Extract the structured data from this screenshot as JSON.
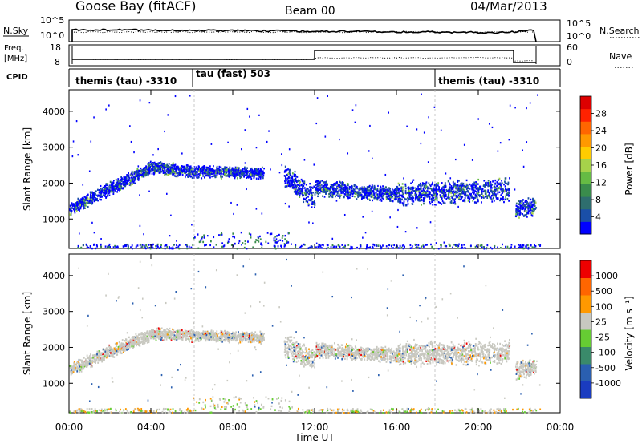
{
  "header": {
    "station": "Goose Bay (fitACF)",
    "beam": "Beam 00",
    "date": "04/Mar/2013"
  },
  "top_panels": {
    "sky": {
      "left_label": "N.Sky",
      "right_label": "N.Search",
      "left_ticks": [
        "10^5",
        "10^0"
      ],
      "right_ticks": [
        "10^5",
        "10^0"
      ]
    },
    "freq": {
      "left_label_1": "Freq.",
      "left_label_2": "[MHz]",
      "right_label": "Nave",
      "left_ticks": [
        "18",
        "8"
      ],
      "right_ticks": [
        "60",
        "0"
      ]
    },
    "cpid": {
      "label": "CPID",
      "segments": [
        {
          "text": "themis (tau) -3310",
          "start_hour": 0,
          "end_hour": 6
        },
        {
          "text": "tau (fast) 503",
          "start_hour": 6,
          "end_hour": 18
        },
        {
          "text": "themis (tau) -3310",
          "start_hour": 18,
          "end_hour": 24
        }
      ]
    }
  },
  "chart_data": [
    {
      "type": "heatmap",
      "title": "",
      "xlabel": "Time UT",
      "ylabel": "Slant Range [km]",
      "xlim": [
        0,
        24
      ],
      "ylim": [
        180,
        4600
      ],
      "x_ticks": [
        0,
        4,
        8,
        12,
        16,
        20,
        24
      ],
      "x_tick_labels": [
        "00:00",
        "04:00",
        "08:00",
        "12:00",
        "16:00",
        "20:00",
        "00:00"
      ],
      "y_ticks": [
        1000,
        2000,
        3000,
        4000
      ],
      "y_tick_labels": [
        "1000",
        "2000",
        "3000",
        "4000"
      ],
      "colorbar": {
        "label": "Power [dB]",
        "tick_labels": [
          "28",
          "24",
          "20",
          "16",
          "12",
          "8",
          "4"
        ],
        "colors": [
          "#0000ff",
          "#1a4fa8",
          "#2e6e6e",
          "#3a8c4c",
          "#66bb44",
          "#a6d24a",
          "#ffcc00",
          "#ff9900",
          "#ff6600",
          "#ff2200",
          "#dd0000"
        ]
      },
      "scatter_bands": [
        {
          "start_hour": 0.0,
          "end_hour": 4.0,
          "center_start": 1300,
          "center_end": 2450,
          "width": 260
        },
        {
          "start_hour": 4.0,
          "end_hour": 6.0,
          "center_start": 2450,
          "center_end": 2350,
          "width": 250
        },
        {
          "start_hour": 6.0,
          "end_hour": 9.5,
          "center_start": 2350,
          "center_end": 2300,
          "width": 220
        },
        {
          "start_hour": 10.5,
          "end_hour": 12.0,
          "center_start": 2200,
          "center_end": 1600,
          "width": 450
        },
        {
          "start_hour": 12.0,
          "end_hour": 16.0,
          "center_start": 1900,
          "center_end": 1700,
          "width": 300
        },
        {
          "start_hour": 16.0,
          "end_hour": 21.5,
          "center_start": 1700,
          "center_end": 1850,
          "width": 450
        },
        {
          "start_hour": 21.8,
          "end_hour": 22.8,
          "center_start": 1300,
          "center_end": 1400,
          "width": 350
        }
      ]
    },
    {
      "type": "heatmap",
      "title": "",
      "xlabel": "Time UT",
      "ylabel": "Slant Range [km]",
      "xlim": [
        0,
        24
      ],
      "ylim": [
        180,
        4600
      ],
      "y_ticks": [
        1000,
        2000,
        3000,
        4000
      ],
      "y_tick_labels": [
        "1000",
        "2000",
        "3000",
        "4000"
      ],
      "colorbar": {
        "label": "Velocity [m s⁻¹]",
        "tick_labels": [
          "1000",
          "500",
          "100",
          "25",
          "-25",
          "-100",
          "-500",
          "-1000"
        ],
        "colors": [
          "#1a3cc0",
          "#2a5fb0",
          "#3a8a6a",
          "#66cc33",
          "#c8c8c0",
          "#ff9900",
          "#ff6600",
          "#ee0000"
        ]
      },
      "scatter_bands": [
        {
          "start_hour": 0.0,
          "end_hour": 4.0,
          "center_start": 1400,
          "center_end": 2400,
          "width": 260
        },
        {
          "start_hour": 4.0,
          "end_hour": 6.0,
          "center_start": 2400,
          "center_end": 2350,
          "width": 250
        },
        {
          "start_hour": 6.0,
          "end_hour": 9.5,
          "center_start": 2350,
          "center_end": 2300,
          "width": 220
        },
        {
          "start_hour": 10.5,
          "end_hour": 12.0,
          "center_start": 2100,
          "center_end": 1650,
          "width": 450
        },
        {
          "start_hour": 12.0,
          "end_hour": 16.0,
          "center_start": 1950,
          "center_end": 1800,
          "width": 300
        },
        {
          "start_hour": 16.0,
          "end_hour": 21.5,
          "center_start": 1800,
          "center_end": 1900,
          "width": 450
        },
        {
          "start_hour": 21.8,
          "end_hour": 22.8,
          "center_start": 1400,
          "center_end": 1450,
          "width": 350
        }
      ]
    }
  ]
}
